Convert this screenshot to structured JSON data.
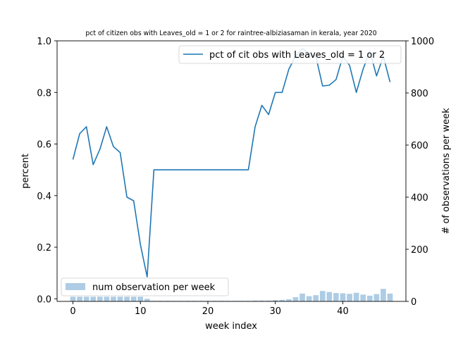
{
  "chart_data": {
    "type": "line",
    "title": "pct of citizen obs with Leaves_old = 1 or 2 for raintree-albiziasaman in kerala, year 2020",
    "xlabel": "week index",
    "ylabel": "percent",
    "y2label": "# of observations per week",
    "xlim": [
      -2.35,
      49.35
    ],
    "ylim": [
      -0.01,
      1.0
    ],
    "y2lim": [
      0,
      1000
    ],
    "xticks": [
      0,
      10,
      20,
      30,
      40
    ],
    "yticks": [
      0.0,
      0.2,
      0.4,
      0.6,
      0.8,
      1.0
    ],
    "y2ticks": [
      0,
      200,
      400,
      600,
      800,
      1000
    ],
    "grid": false,
    "colors": {
      "line": "#1f77b4",
      "bars": "#aecce4"
    },
    "line_series": {
      "name": "pct of cit obs with Leaves_old = 1 or 2",
      "legend_placement": "upper-right",
      "x": [
        0,
        1,
        2,
        3,
        4,
        5,
        6,
        7,
        8,
        9,
        10,
        11,
        12,
        13,
        14,
        15,
        16,
        17,
        18,
        19,
        20,
        21,
        22,
        23,
        24,
        25,
        26,
        27,
        28,
        29,
        30,
        31,
        32,
        33,
        34,
        35,
        36,
        37,
        38,
        39,
        40,
        41,
        42,
        43,
        44,
        45,
        46,
        47
      ],
      "values": [
        0.54,
        0.64,
        0.667,
        0.52,
        0.58,
        0.667,
        0.59,
        0.567,
        0.394,
        0.38,
        0.21,
        0.085,
        0.5,
        0.5,
        0.5,
        0.5,
        0.5,
        0.5,
        0.5,
        0.5,
        0.5,
        0.5,
        0.5,
        0.5,
        0.5,
        0.5,
        0.5,
        0.667,
        0.75,
        0.714,
        0.8,
        0.8,
        0.89,
        0.94,
        0.97,
        0.95,
        0.94,
        0.825,
        0.828,
        0.85,
        0.94,
        0.905,
        0.8,
        0.89,
        0.96,
        0.864,
        0.94,
        0.84
      ]
    },
    "bar_series": {
      "name": "num observation per week",
      "legend_placement": "lower-left",
      "x": [
        0,
        1,
        2,
        3,
        4,
        5,
        6,
        7,
        8,
        9,
        10,
        11,
        12,
        13,
        14,
        15,
        16,
        17,
        18,
        19,
        20,
        21,
        22,
        23,
        24,
        25,
        26,
        27,
        28,
        29,
        30,
        31,
        32,
        33,
        34,
        35,
        36,
        37,
        38,
        39,
        40,
        41,
        42,
        43,
        44,
        45,
        46,
        47
      ],
      "values": [
        18,
        18,
        18,
        18,
        18,
        18,
        18,
        18,
        18,
        18,
        18,
        10,
        2,
        2,
        2,
        2,
        2,
        2,
        2,
        2,
        2,
        2,
        2,
        2,
        2,
        2,
        2,
        3,
        3,
        3,
        5,
        6,
        8,
        16,
        30,
        20,
        24,
        40,
        36,
        32,
        31,
        29,
        33,
        26,
        22,
        28,
        48,
        30
      ]
    }
  }
}
